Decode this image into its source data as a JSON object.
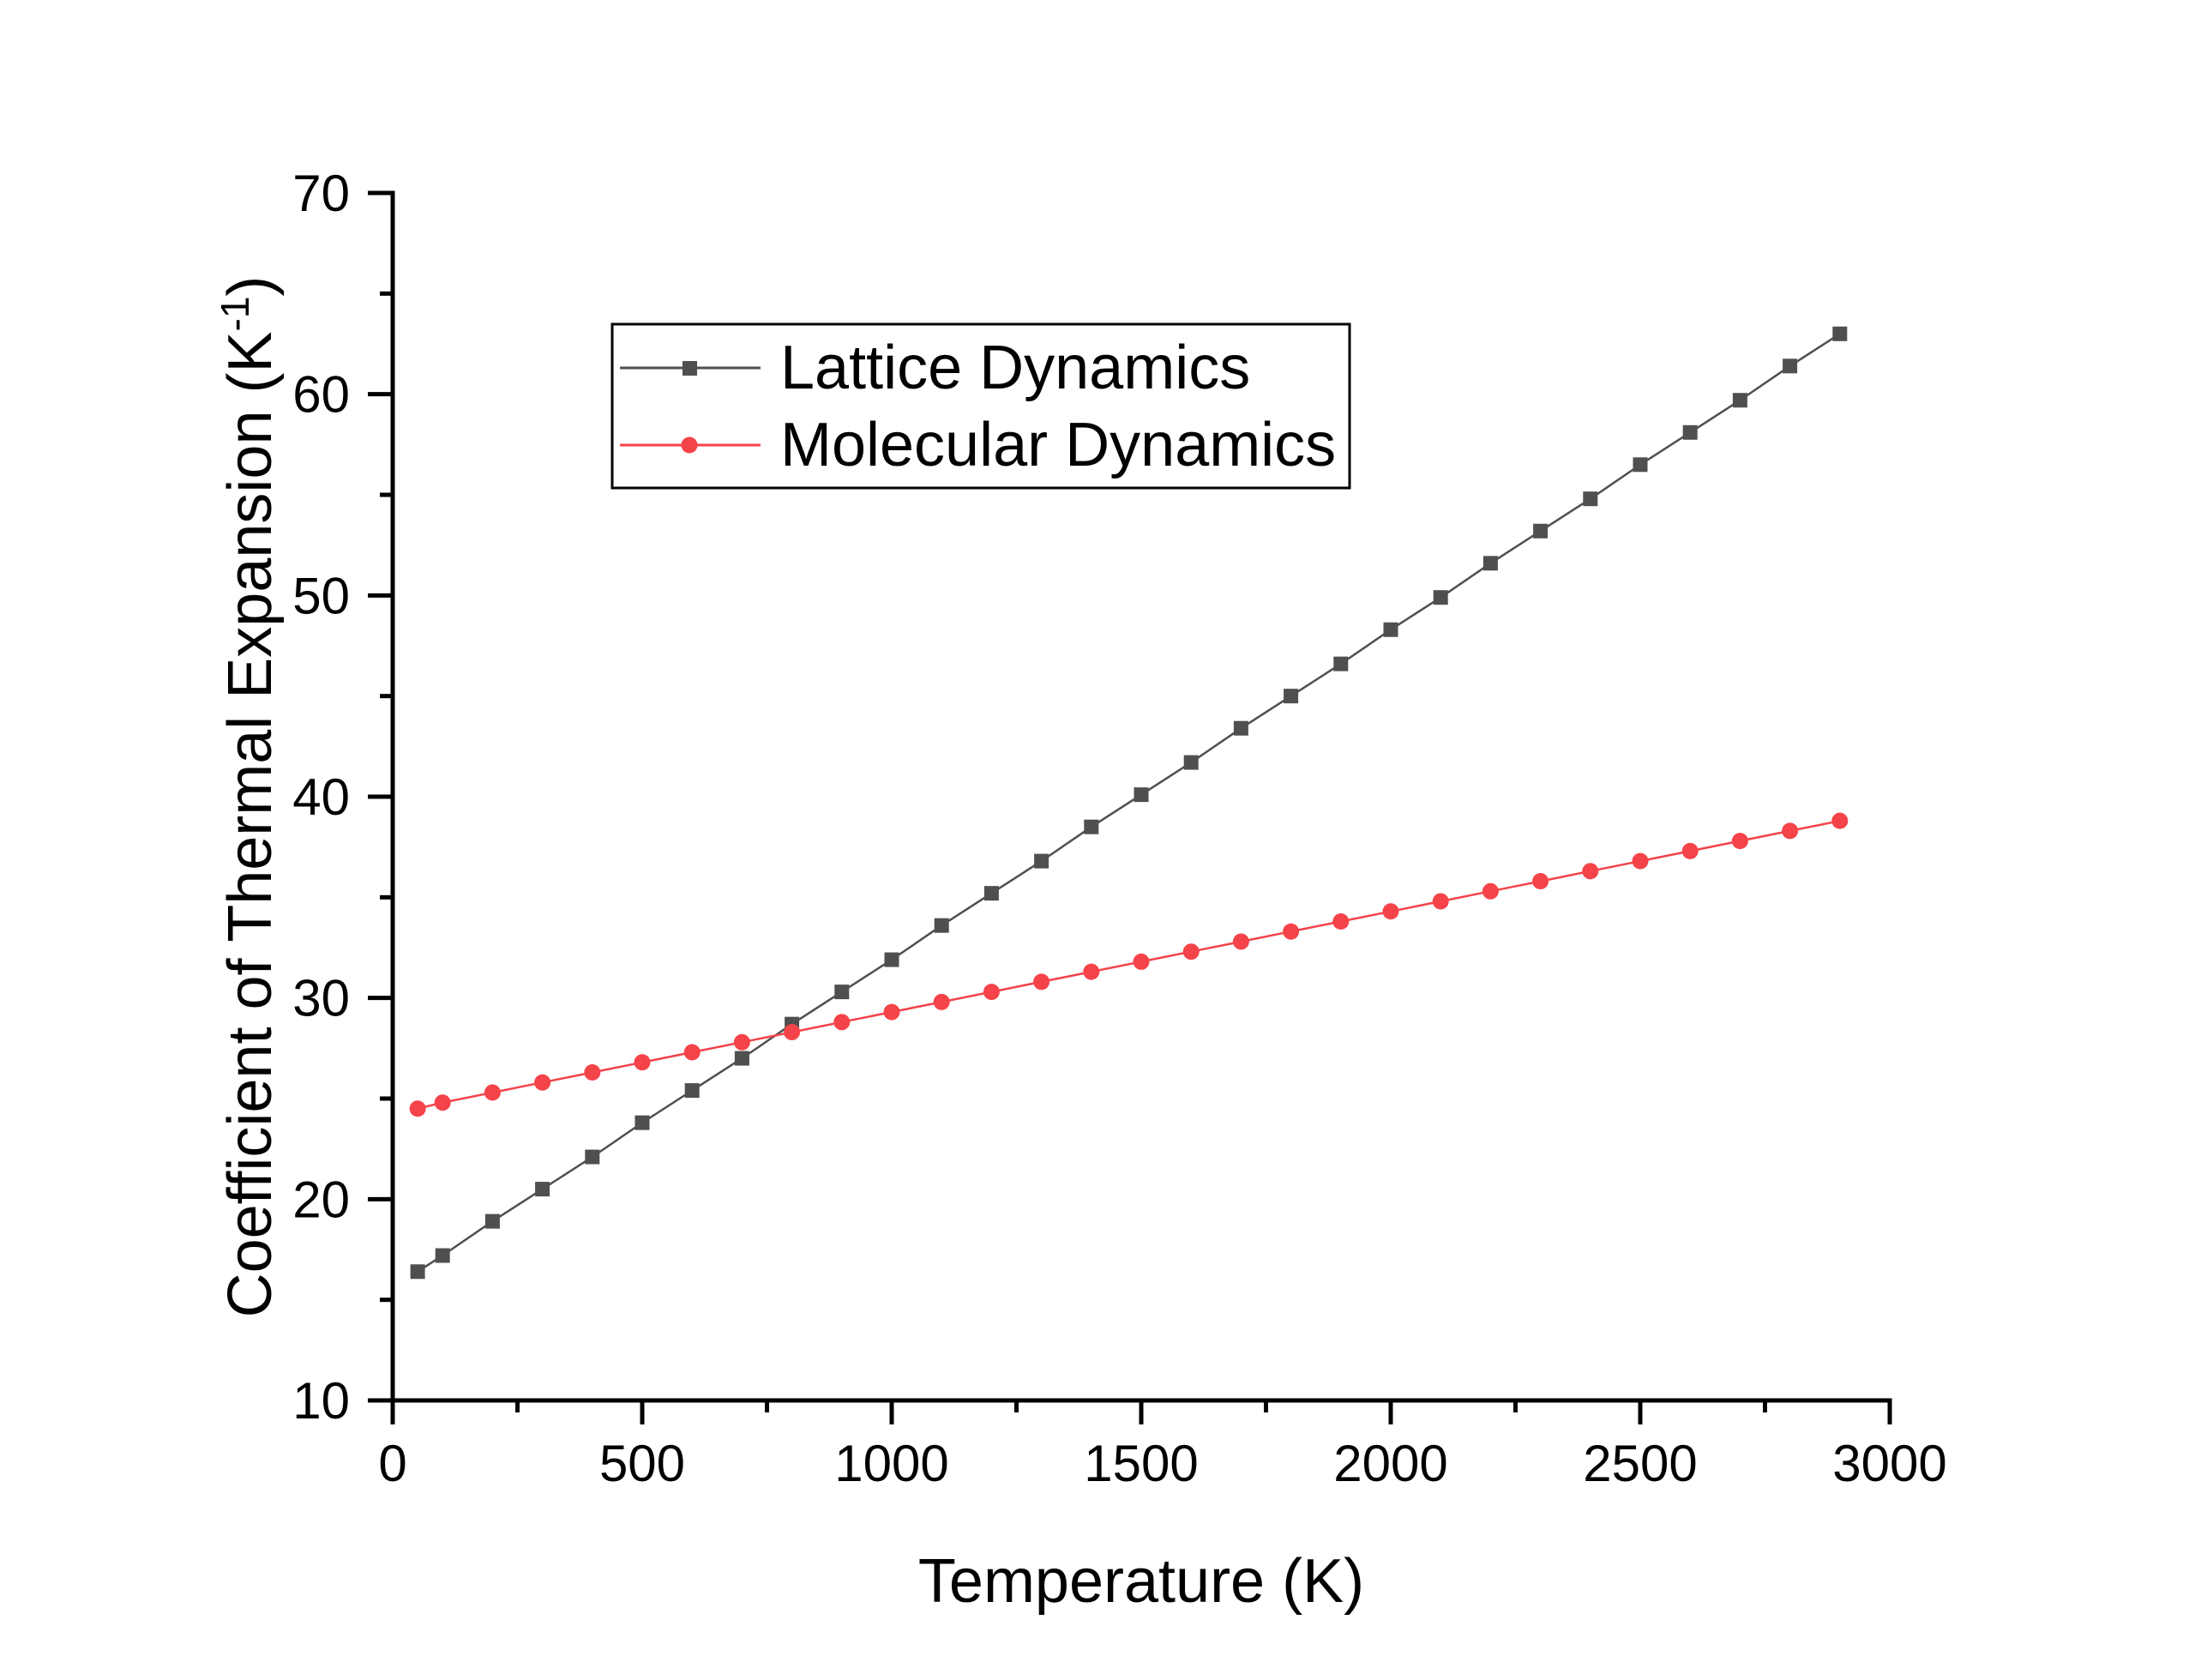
{
  "chart_data": {
    "type": "line",
    "title": "",
    "xlabel": "Temperature (K)",
    "ylabel": {
      "main": "Coefficient of Thermal Expansion (K",
      "sup": "-1",
      "close": ")"
    },
    "xlim": [
      0,
      3000
    ],
    "ylim": [
      10,
      70
    ],
    "x_ticks": [
      0,
      500,
      1000,
      1500,
      2000,
      2500,
      3000
    ],
    "x_tick_labels": [
      "0",
      "500",
      "1000",
      "1500",
      "2000",
      "2500",
      "3000"
    ],
    "x_minor_step": 250,
    "y_ticks": [
      10,
      20,
      30,
      40,
      50,
      60,
      70
    ],
    "y_tick_labels": [
      "10",
      "20",
      "30",
      "40",
      "50",
      "60",
      "70"
    ],
    "y_minor_step": 5,
    "grid": false,
    "legend_position": "upper-center",
    "x": [
      50,
      100,
      200,
      300,
      400,
      500,
      600,
      700,
      800,
      900,
      1000,
      1100,
      1200,
      1300,
      1400,
      1500,
      1600,
      1700,
      1800,
      1900,
      2000,
      2100,
      2200,
      2300,
      2400,
      2500,
      2600,
      2700,
      2800,
      2900
    ],
    "series": [
      {
        "name": "Lattice Dynamics",
        "marker": "square",
        "color": "#4f4f4f",
        "values": [
          16.4,
          17.2,
          18.9,
          20.5,
          22.1,
          23.8,
          25.4,
          27.0,
          28.7,
          30.3,
          31.9,
          33.6,
          35.2,
          36.8,
          38.5,
          40.1,
          41.7,
          43.4,
          45.0,
          46.6,
          48.3,
          49.9,
          51.6,
          53.2,
          54.8,
          56.5,
          58.1,
          59.7,
          61.4,
          63.0
        ]
      },
      {
        "name": "Molecular Dynamics",
        "marker": "circle",
        "color": "#f44349",
        "values": [
          24.5,
          24.8,
          25.3,
          25.8,
          26.3,
          26.8,
          27.3,
          27.8,
          28.3,
          28.8,
          29.3,
          29.8,
          30.3,
          30.8,
          31.3,
          31.8,
          32.3,
          32.8,
          33.3,
          33.8,
          34.3,
          34.8,
          35.3,
          35.8,
          36.3,
          36.8,
          37.3,
          37.8,
          38.3,
          38.8
        ]
      }
    ]
  }
}
